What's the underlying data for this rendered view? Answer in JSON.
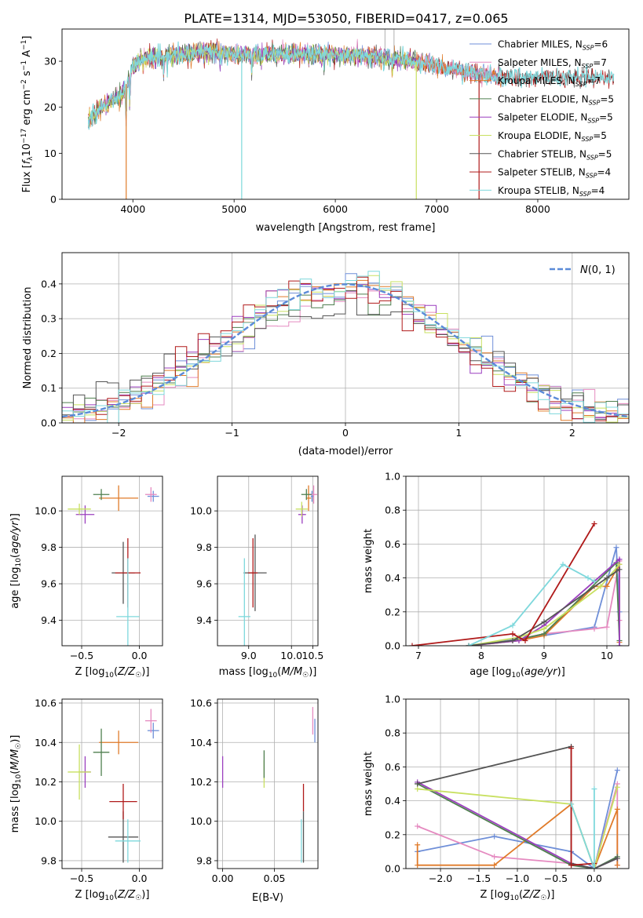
{
  "figure": {
    "title": "PLATE=1314, MJD=53050, FIBERID=0417, z=0.065"
  },
  "colors": {
    "chabrier_miles": "#6f8fd8",
    "salpeter_miles": "#e58ac0",
    "kroupa_miles": "#e07b2a",
    "chabrier_elodie": "#4f7f4f",
    "salpeter_elodie": "#9b3fbf",
    "kroupa_elodie": "#c8e060",
    "chabrier_stelib": "#555555",
    "salpeter_stelib": "#b01a1a",
    "kroupa_stelib": "#7ed8dc",
    "grid": "#b0b0b0",
    "normal": "#5b8bd8"
  },
  "legend": [
    {
      "key": "chabrier_miles",
      "prefix": "Chabrier MILES, N",
      "n": "6"
    },
    {
      "key": "salpeter_miles",
      "prefix": "Salpeter MILES, N",
      "n": "7"
    },
    {
      "key": "kroupa_miles",
      "prefix": "Kroupa MILES, N",
      "n": "7"
    },
    {
      "key": "chabrier_elodie",
      "prefix": "Chabrier ELODIE, N",
      "n": "5"
    },
    {
      "key": "salpeter_elodie",
      "prefix": "Salpeter ELODIE, N",
      "n": "5"
    },
    {
      "key": "kroupa_elodie",
      "prefix": "Kroupa ELODIE, N",
      "n": "5"
    },
    {
      "key": "chabrier_stelib",
      "prefix": "Chabrier STELIB, N",
      "n": "5"
    },
    {
      "key": "salpeter_stelib",
      "prefix": "Salpeter STELIB, N",
      "n": "4"
    },
    {
      "key": "kroupa_stelib",
      "prefix": "Kroupa STELIB, N",
      "n": "4"
    }
  ],
  "chart_data": [
    {
      "id": "spectrum",
      "type": "line",
      "xlabel": "wavelength [Angstrom, rest frame]",
      "xlim": [
        3300,
        8900
      ],
      "ylim": [
        0,
        37
      ],
      "xticks": [
        4000,
        5000,
        6000,
        7000,
        8000
      ],
      "yticks": [
        0,
        10,
        20,
        30
      ],
      "continuum": {
        "x": [
          3560,
          3700,
          3900,
          4000,
          4100,
          4300,
          4500,
          4800,
          5000,
          5300,
          5600,
          6000,
          6300,
          6600,
          6900,
          7200,
          7600
        ],
        "y": [
          17,
          20,
          23,
          29,
          31,
          31,
          31.5,
          32,
          31.5,
          31.5,
          31.5,
          31.5,
          31,
          30.5,
          29.5,
          28,
          26.5
        ]
      },
      "absorption_spikes": [
        {
          "x": 3934,
          "y": 0
        },
        {
          "x": 5075,
          "y": 0
        },
        {
          "x": 6800,
          "y": 0
        },
        {
          "x": 7420,
          "y": 0
        }
      ]
    },
    {
      "id": "residuals",
      "type": "histogram",
      "xlabel": "(data-model)/error",
      "ylabel": "Normed distribution",
      "xlim": [
        -2.5,
        2.5
      ],
      "ylim": [
        0,
        0.49
      ],
      "xticks": [
        -2,
        -1,
        0,
        1,
        2
      ],
      "yticks": [
        0,
        0.1,
        0.2,
        0.3,
        0.4
      ],
      "bin_width": 0.1,
      "model_label": "N(0,1)"
    },
    {
      "id": "age-vs-z",
      "type": "scatter",
      "xlabel_main": "Z [log",
      "xlabel_sub": "10",
      "xlabel_rest": "(Z/Z",
      "xlabel_end": ")]",
      "ylabel": "age  [log10(age/yr)]",
      "xlim": [
        -0.67,
        0.2
      ],
      "ylim": [
        9.26,
        10.19
      ],
      "xticks": [
        -0.5,
        0.0
      ],
      "yticks": [
        9.4,
        9.6,
        9.8,
        10.0
      ],
      "points": [
        {
          "key": "chabrier_miles",
          "x": 0.12,
          "y": 10.08,
          "xerr": 0.05,
          "yerr": 0.03
        },
        {
          "key": "salpeter_miles",
          "x": 0.1,
          "y": 10.09,
          "xerr": 0.05,
          "yerr": 0.04
        },
        {
          "key": "kroupa_miles",
          "x": -0.18,
          "y": 10.07,
          "xerr": 0.17,
          "yerr": 0.07
        },
        {
          "key": "chabrier_elodie",
          "x": -0.33,
          "y": 10.09,
          "xerr": 0.07,
          "yerr": 0.03
        },
        {
          "key": "salpeter_elodie",
          "x": -0.47,
          "y": 9.98,
          "xerr": 0.08,
          "yerr": 0.05
        },
        {
          "key": "kroupa_elodie",
          "x": -0.52,
          "y": 10.01,
          "xerr": 0.1,
          "yerr": 0.03
        },
        {
          "key": "chabrier_stelib",
          "x": -0.14,
          "y": 9.66,
          "xerr": 0.1,
          "yerr": 0.17
        },
        {
          "key": "salpeter_stelib",
          "x": -0.1,
          "y": 9.66,
          "xerr": 0.11,
          "yerr": 0.19
        },
        {
          "key": "kroupa_stelib",
          "x": -0.1,
          "y": 9.42,
          "xerr": 0.1,
          "yerr": 0.32
        }
      ]
    },
    {
      "id": "age-vs-mass",
      "type": "scatter",
      "xlabel": "mass",
      "ylabel": "",
      "xlim": [
        8.27,
        10.62
      ],
      "ylim": [
        9.26,
        10.19
      ],
      "xticks": [
        9.0,
        10.0,
        10.5
      ],
      "yticks": [
        9.4,
        9.6,
        9.8,
        10.0
      ],
      "points": [
        {
          "key": "chabrier_miles",
          "x": 10.48,
          "y": 10.08,
          "xerr": 0.03,
          "yerr": 0.03
        },
        {
          "key": "salpeter_miles",
          "x": 10.52,
          "y": 10.09,
          "xerr": 0.08,
          "yerr": 0.05
        },
        {
          "key": "kroupa_miles",
          "x": 10.4,
          "y": 10.07,
          "xerr": 0.06,
          "yerr": 0.07
        },
        {
          "key": "chabrier_elodie",
          "x": 10.35,
          "y": 10.09,
          "xerr": 0.12,
          "yerr": 0.03
        },
        {
          "key": "salpeter_elodie",
          "x": 10.25,
          "y": 9.98,
          "xerr": 0.09,
          "yerr": 0.05
        },
        {
          "key": "kroupa_elodie",
          "x": 10.24,
          "y": 10.01,
          "xerr": 0.14,
          "yerr": 0.04
        },
        {
          "key": "chabrier_stelib",
          "x": 9.15,
          "y": 9.66,
          "xerr": 0.27,
          "yerr": 0.21
        },
        {
          "key": "salpeter_stelib",
          "x": 9.1,
          "y": 9.66,
          "xerr": 0.11,
          "yerr": 0.19
        },
        {
          "key": "kroupa_stelib",
          "x": 8.9,
          "y": 9.42,
          "xerr": 0.14,
          "yerr": 0.32
        }
      ]
    },
    {
      "id": "massweight-vs-age",
      "type": "line",
      "xlabel": "age  [log10(age/yr)]",
      "ylabel": "mass weight",
      "xlim": [
        6.8,
        10.35
      ],
      "ylim": [
        0,
        1.0
      ],
      "xticks": [
        7,
        8,
        9,
        10
      ],
      "yticks": [
        0.0,
        0.2,
        0.4,
        0.6,
        0.8,
        1.0
      ],
      "series": [
        {
          "key": "chabrier_miles",
          "x": [
            7.8,
            8.6,
            9.0,
            9.8,
            10.15,
            10.2
          ],
          "y": [
            0.0,
            0.04,
            0.06,
            0.11,
            0.58,
            0.2
          ]
        },
        {
          "key": "salpeter_miles",
          "x": [
            7.8,
            8.5,
            9.0,
            9.8,
            10.0,
            10.2,
            10.2
          ],
          "y": [
            0.0,
            0.03,
            0.07,
            0.1,
            0.11,
            0.5,
            0.15
          ]
        },
        {
          "key": "kroupa_miles",
          "x": [
            7.8,
            8.6,
            9.0,
            9.8,
            10.0,
            10.2,
            10.2
          ],
          "y": [
            0.0,
            0.03,
            0.06,
            0.35,
            0.35,
            0.48,
            0.02
          ]
        },
        {
          "key": "chabrier_elodie",
          "x": [
            7.8,
            8.5,
            9.0,
            10.15,
            10.2
          ],
          "y": [
            0.0,
            0.03,
            0.07,
            0.49,
            0.03
          ]
        },
        {
          "key": "salpeter_elodie",
          "x": [
            7.8,
            8.6,
            9.0,
            10.2,
            10.2
          ],
          "y": [
            0.0,
            0.03,
            0.12,
            0.51,
            0.0
          ]
        },
        {
          "key": "kroupa_elodie",
          "x": [
            7.8,
            8.6,
            9.0,
            9.9,
            10.2
          ],
          "y": [
            0.0,
            0.05,
            0.1,
            0.35,
            0.48
          ]
        },
        {
          "key": "chabrier_stelib",
          "x": [
            7.8,
            8.5,
            9.0,
            10.0,
            10.2
          ],
          "y": [
            0.0,
            0.03,
            0.14,
            0.4,
            0.45
          ]
        },
        {
          "key": "salpeter_stelib",
          "x": [
            6.9,
            8.5,
            8.7,
            9.8
          ],
          "y": [
            0.0,
            0.07,
            0.03,
            0.72
          ]
        },
        {
          "key": "kroupa_stelib",
          "x": [
            7.8,
            8.5,
            9.3,
            9.7,
            9.8
          ],
          "y": [
            0.0,
            0.12,
            0.48,
            0.4,
            0.38
          ]
        }
      ]
    },
    {
      "id": "mass-vs-z",
      "type": "scatter",
      "xlabel": "Z",
      "ylabel": "mass",
      "xlim": [
        -0.67,
        0.2
      ],
      "ylim": [
        9.76,
        10.62
      ],
      "xticks": [
        -0.5,
        0.0
      ],
      "yticks": [
        9.8,
        10.0,
        10.2,
        10.4,
        10.6
      ],
      "points": [
        {
          "key": "chabrier_miles",
          "x": 0.12,
          "y": 10.46,
          "xerr": 0.05,
          "yerr": 0.04
        },
        {
          "key": "salpeter_miles",
          "x": 0.1,
          "y": 10.51,
          "xerr": 0.05,
          "yerr": 0.06
        },
        {
          "key": "kroupa_miles",
          "x": -0.18,
          "y": 10.4,
          "xerr": 0.17,
          "yerr": 0.06
        },
        {
          "key": "chabrier_elodie",
          "x": -0.33,
          "y": 10.35,
          "xerr": 0.07,
          "yerr": 0.12
        },
        {
          "key": "salpeter_elodie",
          "x": -0.47,
          "y": 10.25,
          "xerr": 0.05,
          "yerr": 0.08
        },
        {
          "key": "kroupa_elodie",
          "x": -0.52,
          "y": 10.25,
          "xerr": 0.1,
          "yerr": 0.14
        },
        {
          "key": "chabrier_stelib",
          "x": -0.14,
          "y": 9.92,
          "xerr": 0.13,
          "yerr": 0.13
        },
        {
          "key": "salpeter_stelib",
          "x": -0.14,
          "y": 10.1,
          "xerr": 0.12,
          "yerr": 0.09
        },
        {
          "key": "kroupa_stelib",
          "x": -0.1,
          "y": 9.9,
          "xerr": 0.11,
          "yerr": 0.11
        }
      ]
    },
    {
      "id": "mass-vs-ebv",
      "type": "scatter",
      "xlabel": "E(B-V)",
      "xlim": [
        -0.005,
        0.092
      ],
      "ylim": [
        9.76,
        10.62
      ],
      "xticks": [
        0.0,
        0.05
      ],
      "yticks": [
        9.8,
        10.0,
        10.2,
        10.4,
        10.6
      ],
      "points": [
        {
          "key": "chabrier_miles",
          "x": 0.089,
          "y": 10.46,
          "xerr": 0.0,
          "yerr": 0.06
        },
        {
          "key": "salpeter_miles",
          "x": 0.087,
          "y": 10.51,
          "xerr": 0.0,
          "yerr": 0.07
        },
        {
          "key": "salpeter_elodie",
          "x": 0.0,
          "y": 10.25,
          "xerr": 0.0,
          "yerr": 0.08
        },
        {
          "key": "kroupa_elodie",
          "x": 0.04,
          "y": 10.24,
          "xerr": 0.0,
          "yerr": 0.07
        },
        {
          "key": "chabrier_elodie",
          "x": 0.04,
          "y": 10.29,
          "xerr": 0.0,
          "yerr": 0.07
        },
        {
          "key": "salpeter_stelib",
          "x": 0.078,
          "y": 10.12,
          "xerr": 0.0,
          "yerr": 0.07
        },
        {
          "key": "chabrier_stelib",
          "x": 0.078,
          "y": 9.92,
          "xerr": 0.0,
          "yerr": 0.13
        },
        {
          "key": "kroupa_stelib",
          "x": 0.076,
          "y": 9.9,
          "xerr": 0.0,
          "yerr": 0.11
        }
      ]
    },
    {
      "id": "massweight-vs-z",
      "type": "line",
      "xlabel": "Z",
      "ylabel": "mass weight",
      "xlim": [
        -2.45,
        0.45
      ],
      "ylim": [
        0,
        1.0
      ],
      "xticks": [
        -2.0,
        -1.5,
        -1.0,
        -0.5,
        0.0
      ],
      "yticks": [
        0.0,
        0.2,
        0.4,
        0.6,
        0.8,
        1.0
      ],
      "series": [
        {
          "key": "chabrier_miles",
          "x": [
            -2.3,
            -1.3,
            -0.3,
            0.0,
            0.3
          ],
          "y": [
            0.1,
            0.19,
            0.1,
            0.0,
            0.58
          ]
        },
        {
          "key": "salpeter_miles",
          "x": [
            -2.3,
            -1.3,
            -0.3,
            0.0,
            0.3,
            0.3
          ],
          "y": [
            0.25,
            0.07,
            0.03,
            0.0,
            0.5,
            0.02
          ]
        },
        {
          "key": "kroupa_miles",
          "x": [
            -2.3,
            -2.3,
            -1.3,
            -0.3,
            0.0,
            0.3,
            0.3
          ],
          "y": [
            0.14,
            0.02,
            0.02,
            0.38,
            0.0,
            0.35,
            0.02
          ]
        },
        {
          "key": "chabrier_elodie",
          "x": [
            -2.3,
            -0.3,
            0.0,
            0.3
          ],
          "y": [
            0.5,
            0.02,
            0.0,
            0.07
          ]
        },
        {
          "key": "salpeter_elodie",
          "x": [
            -2.3,
            -0.3,
            0.0,
            0.3
          ],
          "y": [
            0.51,
            0.03,
            0.0,
            0.06
          ]
        },
        {
          "key": "kroupa_elodie",
          "x": [
            -2.3,
            -0.3,
            0.0,
            0.3
          ],
          "y": [
            0.47,
            0.38,
            0.0,
            0.48
          ]
        },
        {
          "key": "chabrier_stelib",
          "x": [
            -2.3,
            -0.3,
            -0.3,
            0.0,
            0.3
          ],
          "y": [
            0.5,
            0.72,
            0.03,
            0.0,
            0.06
          ]
        },
        {
          "key": "salpeter_stelib",
          "x": [
            -0.3,
            -0.3,
            0.0
          ],
          "y": [
            0.71,
            0.02,
            0.03
          ]
        },
        {
          "key": "kroupa_stelib",
          "x": [
            -0.3,
            0.0,
            0.0
          ],
          "y": [
            0.38,
            0.0,
            0.47
          ]
        }
      ]
    }
  ]
}
